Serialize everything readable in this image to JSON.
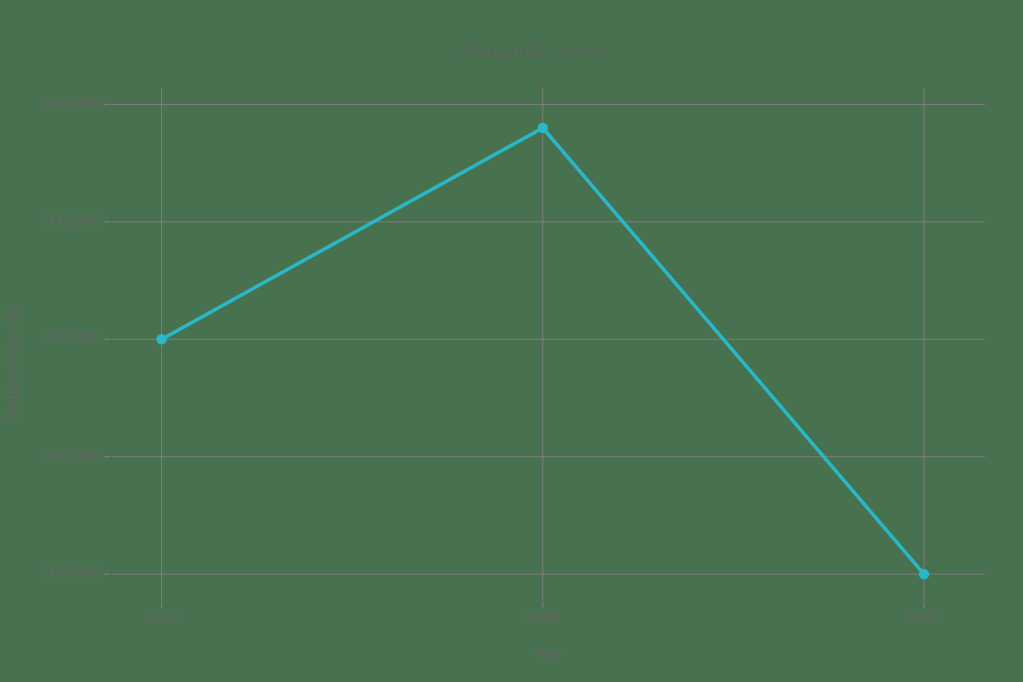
{
  "title": {
    "seg1": "479",
    "seg2": "kin",
    "seg3": "2024,",
    "seg4": "down",
    "full": "479kin2024, down"
  },
  "chart_data": {
    "type": "line",
    "x": [
      2023,
      2024,
      2025
    ],
    "xtick_labels": [
      "2023",
      "2024",
      "2025"
    ],
    "series": [
      {
        "name": "Median Price",
        "values": [
          470000,
          479000,
          460000
        ]
      }
    ],
    "yticks": [
      460000,
      465000,
      470000,
      475000,
      480000
    ],
    "ytick_labels": [
      "$460,000",
      "$465,000",
      "$470,000",
      "$475,000",
      "$480,000"
    ],
    "title": "479kin2024, down",
    "xlabel": "Year",
    "ylabel": "Median Price ($)",
    "xlim": [
      2022.87,
      2025.16
    ],
    "ylim": [
      458900,
      480700
    ],
    "grid": true,
    "legend": false,
    "marker": "circle",
    "colors": {
      "line": "#29b8c9",
      "marker": "#29b8c9",
      "grid": "#7d7d7d",
      "text": "#656565",
      "title_text": "#5e5e5e",
      "background": "#47714f"
    }
  }
}
